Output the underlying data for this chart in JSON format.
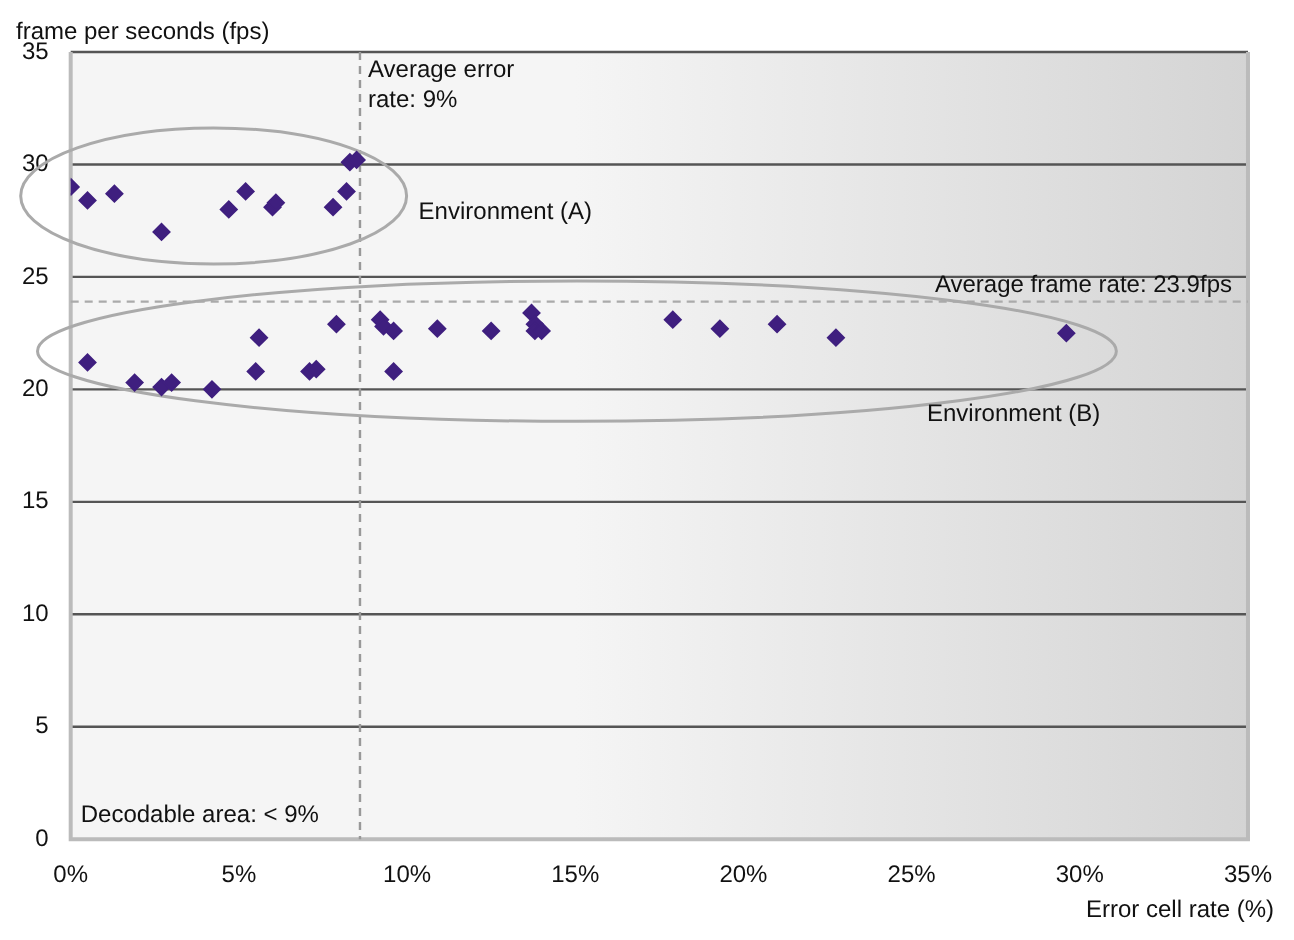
{
  "chart_data": {
    "type": "scatter",
    "xlabel": "Error cell rate (%)",
    "ylabel": "frame per seconds (fps)",
    "series": [
      {
        "color": "#3f1f7f",
        "x": [
          0,
          0.5,
          1.3,
          2.7,
          4.7,
          5.2,
          6.0,
          6.1,
          7.8,
          8.2,
          8.3,
          8.5,
          0.5,
          1.9,
          2.7,
          3.0,
          4.2,
          5.5,
          5.6,
          7.1,
          7.3,
          7.9,
          9.2,
          9.3,
          9.6,
          9.6,
          10.9,
          12.5,
          13.7,
          13.8,
          13.8,
          14.0,
          17.9,
          19.3,
          21.0,
          22.75,
          29.6
        ],
        "values": [
          29.0,
          28.4,
          28.7,
          27.0,
          28.0,
          28.8,
          28.1,
          28.3,
          28.1,
          28.8,
          30.1,
          30.2,
          21.2,
          20.3,
          20.1,
          20.3,
          20.0,
          20.8,
          22.3,
          20.8,
          20.9,
          22.9,
          23.1,
          22.8,
          22.6,
          20.8,
          22.7,
          22.6,
          23.4,
          22.9,
          22.6,
          22.6,
          23.1,
          22.7,
          22.9,
          22.3,
          22.5
        ]
      }
    ],
    "xlim": [
      0,
      35
    ],
    "xticks": [
      {
        "value": 0,
        "label": "0%"
      },
      {
        "value": 5,
        "label": "5%"
      },
      {
        "value": 10,
        "label": "10%"
      },
      {
        "value": 15,
        "label": "15%"
      },
      {
        "value": 20,
        "label": "20%"
      },
      {
        "value": 25,
        "label": "25%"
      },
      {
        "value": 30,
        "label": "30%"
      },
      {
        "value": 35,
        "label": "35%"
      }
    ],
    "ylim": [
      0,
      35
    ],
    "yticks": [
      0,
      5,
      10,
      15,
      20,
      25,
      30,
      35
    ],
    "grid": "y",
    "legend": false,
    "marker": "diamond",
    "ref_lines": [
      {
        "axis": "x",
        "value": 8.6,
        "label": "Average error rate: 9%",
        "color": "#999999",
        "line_style": "dashed"
      },
      {
        "axis": "y",
        "value": 23.9,
        "label": "Average frame rate: 23.9fps",
        "color": "#aaaaaa",
        "line_style": "dashed"
      }
    ],
    "bands": [
      {
        "axis": "x",
        "from": 15,
        "to": 35,
        "color": "#d4d4d4"
      }
    ],
    "annotations": [
      "Environment (A)",
      "Environment (B)",
      "Decodable area: < 9%"
    ]
  }
}
